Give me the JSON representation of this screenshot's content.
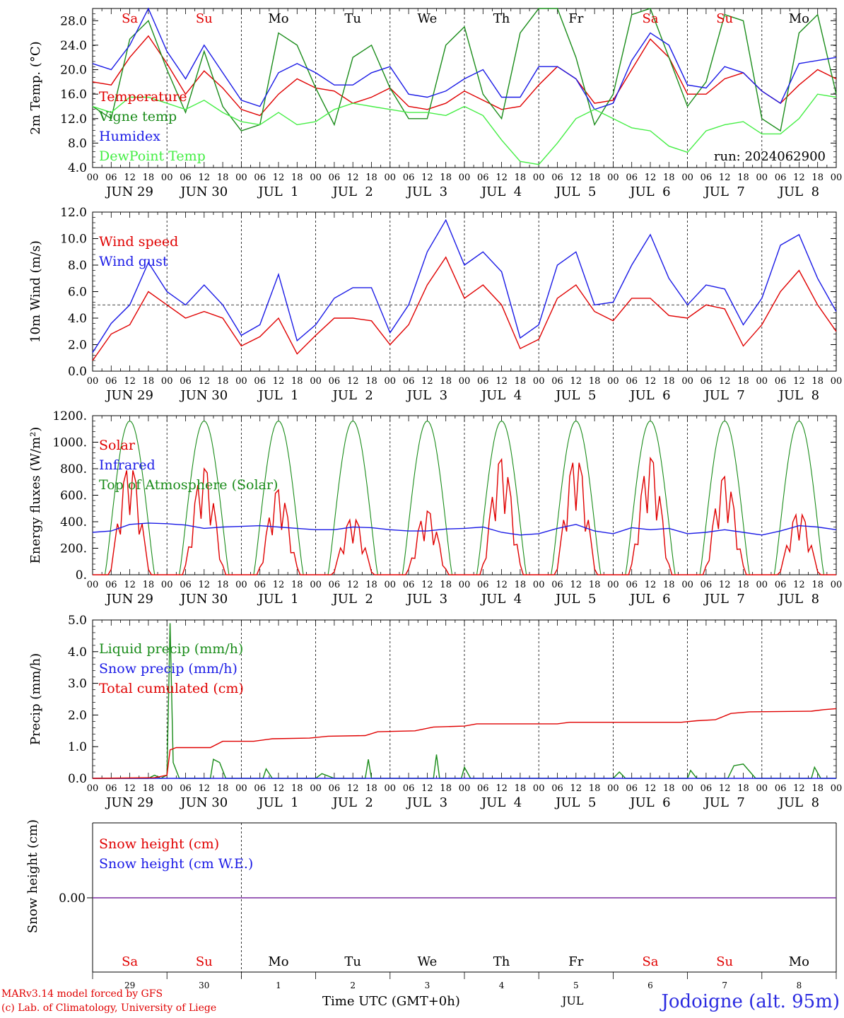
{
  "footer": {
    "model_line": "MARv3.14 model forced by GFS",
    "credit_line": "(c) Lab. of Climatology, University of Liege",
    "x_title": "Time UTC (GMT+0h)",
    "month": "JUL",
    "station": "Jodoigne (alt. 95m)"
  },
  "run_label": "run: 2024062900",
  "colors": {
    "red": "#e00000",
    "green": "#1a8c1a",
    "blue": "#1a1ae6",
    "lightgreen": "#44ee44",
    "purple": "#7a2aa0",
    "grid": "#000000"
  },
  "hour_ticks": [
    "00",
    "06",
    "12",
    "18"
  ],
  "chart_data": [
    {
      "type": "line",
      "ylabel": "2m Temp. (°C)",
      "ylim": [
        4,
        30
      ],
      "yticks": [
        "4.0",
        "8.0",
        "12.0",
        "16.0",
        "20.0",
        "24.0",
        "28.0"
      ],
      "day_labels": [
        "JUN 29",
        "JUN 30",
        "JUL  1",
        "JUL  2",
        "JUL  3",
        "JUL  4",
        "JUL  5",
        "JUL  6",
        "JUL  7",
        "JUL  8"
      ],
      "weekdays": [
        {
          "d": "Sa",
          "c": "red"
        },
        {
          "d": "Su",
          "c": "red"
        },
        {
          "d": "Mo",
          "c": "black"
        },
        {
          "d": "Tu",
          "c": "black"
        },
        {
          "d": "We",
          "c": "black"
        },
        {
          "d": "Th",
          "c": "black"
        },
        {
          "d": "Fr",
          "c": "black"
        },
        {
          "d": "Sa",
          "c": "red"
        },
        {
          "d": "Su",
          "c": "red"
        },
        {
          "d": "Mo",
          "c": "black"
        }
      ],
      "x_hours": [
        0,
        6,
        12,
        18,
        24,
        30,
        36,
        42,
        48,
        54,
        60,
        66,
        72,
        78,
        84,
        90,
        96,
        102,
        108,
        114,
        120,
        126,
        132,
        138,
        144,
        150,
        156,
        162,
        168,
        174,
        180,
        186,
        192,
        198,
        204,
        210,
        216,
        222,
        228,
        234,
        240
      ],
      "series": [
        {
          "name": "Temperature",
          "color": "red",
          "values": [
            18,
            17.5,
            22,
            25.5,
            21,
            16,
            19.8,
            17,
            13.5,
            12.5,
            16,
            18.5,
            17,
            16.5,
            14.5,
            15.5,
            17,
            14,
            13.5,
            14.5,
            16.5,
            15,
            13.5,
            14,
            17.5,
            20.5,
            18.5,
            14.5,
            15,
            20,
            25,
            22,
            16,
            16,
            18.5,
            19.5,
            16.5,
            14.5,
            17.5,
            20,
            18.5
          ]
        },
        {
          "name": "Vigne temp",
          "color": "green",
          "values": [
            14,
            12,
            25,
            28,
            20,
            13,
            23,
            14,
            10,
            11,
            26,
            24,
            17,
            11,
            22,
            24,
            17,
            12,
            12,
            24,
            27,
            16,
            12,
            26,
            30,
            30,
            22,
            11,
            16,
            29,
            30,
            22,
            14,
            18,
            29,
            28,
            12,
            10,
            26,
            29,
            16
          ]
        },
        {
          "name": "Humidex",
          "color": "blue",
          "values": [
            21,
            20,
            24,
            30,
            23,
            18.5,
            24,
            19.5,
            15,
            14,
            19.5,
            21,
            19.5,
            17.5,
            17.5,
            19.5,
            20.5,
            16,
            15.5,
            16.5,
            18.5,
            20,
            15.5,
            15.5,
            20.5,
            20.5,
            18.5,
            13.5,
            14.5,
            21.5,
            26,
            24,
            17.5,
            17,
            20.5,
            19.5,
            16.5,
            14.5,
            21,
            21.5,
            22
          ]
        },
        {
          "name": "DewPoint Temp",
          "color": "lightgreen",
          "values": [
            14,
            13,
            15.5,
            15.5,
            14.5,
            13.5,
            15,
            13,
            11.5,
            11,
            13,
            11,
            11.5,
            13.5,
            14.5,
            14,
            13.5,
            13,
            13,
            12.5,
            14,
            12.5,
            8.5,
            5,
            4.5,
            8,
            12,
            13.5,
            12,
            10.5,
            10,
            7.5,
            6.5,
            10,
            11,
            11.5,
            9.5,
            9.5,
            12,
            16,
            15.5
          ]
        }
      ]
    },
    {
      "type": "line",
      "ylabel": "10m Wind (m/s)",
      "ylim": [
        0,
        12
      ],
      "yticks": [
        "0.0",
        "2.0",
        "4.0",
        "6.0",
        "8.0",
        "10.0",
        "12.0"
      ],
      "ref_line": 5,
      "day_labels": [
        "JUN 29",
        "JUN 30",
        "JUL  1",
        "JUL  2",
        "JUL  3",
        "JUL  4",
        "JUL  5",
        "JUL  6",
        "JUL  7",
        "JUL  8"
      ],
      "x_hours": [
        0,
        6,
        12,
        18,
        24,
        30,
        36,
        42,
        48,
        54,
        60,
        66,
        72,
        78,
        84,
        90,
        96,
        102,
        108,
        114,
        120,
        126,
        132,
        138,
        144,
        150,
        156,
        162,
        168,
        174,
        180,
        186,
        192,
        198,
        204,
        210,
        216,
        222,
        228,
        234,
        240
      ],
      "series": [
        {
          "name": "Wind speed",
          "color": "red",
          "values": [
            0.8,
            2.8,
            3.5,
            6,
            5,
            4,
            4.5,
            4,
            1.9,
            2.6,
            4,
            1.3,
            2.7,
            4,
            4,
            3.8,
            2,
            3.5,
            6.5,
            8.6,
            5.5,
            6.5,
            5,
            1.7,
            2.4,
            5.5,
            6.5,
            4.5,
            3.8,
            5.5,
            5.5,
            4.2,
            4,
            5,
            4.7,
            1.9,
            3.5,
            6,
            7.6,
            5,
            3
          ]
        },
        {
          "name": "Wind gust",
          "color": "blue",
          "values": [
            1.4,
            3.6,
            5,
            8.2,
            6,
            5,
            6.5,
            5,
            2.7,
            3.5,
            7.3,
            2.3,
            3.5,
            5.5,
            6.3,
            6.3,
            2.9,
            5,
            9,
            11.4,
            8,
            9,
            7.5,
            2.5,
            3.5,
            8,
            9,
            5,
            5.2,
            8,
            10.3,
            7,
            5,
            6.5,
            6.2,
            3.5,
            5.5,
            9.5,
            10.3,
            7,
            4.5
          ]
        }
      ]
    },
    {
      "type": "line",
      "ylabel": "Energy fluxes (W/m²)",
      "ylim": [
        0,
        1200
      ],
      "yticks": [
        "0.",
        "200.",
        "400.",
        "600.",
        "800.",
        "1000.",
        "1200."
      ],
      "day_labels": [
        "JUN 29",
        "JUN 30",
        "JUL  1",
        "JUL  2",
        "JUL  3",
        "JUL  4",
        "JUL  5",
        "JUL  6",
        "JUL  7",
        "JUL  8"
      ],
      "series": [
        {
          "name": "Solar",
          "color": "red",
          "day_peaks": [
            820,
            800,
            640,
            430,
            480,
            870,
            880,
            880,
            740,
            470
          ]
        },
        {
          "name": "Infrared",
          "color": "blue",
          "values": [
            320,
            330,
            380,
            390,
            385,
            375,
            350,
            360,
            365,
            370,
            360,
            350,
            340,
            340,
            360,
            355,
            340,
            330,
            330,
            345,
            350,
            360,
            320,
            300,
            310,
            350,
            380,
            330,
            310,
            355,
            340,
            350,
            310,
            320,
            340,
            320,
            300,
            330,
            370,
            360,
            340
          ]
        },
        {
          "name": "Top of Atmosphere (Solar)",
          "color": "green",
          "peak": 1160
        }
      ]
    },
    {
      "type": "line",
      "ylabel": "Precip (mm/h)",
      "ylim": [
        0,
        5
      ],
      "yticks": [
        "0.0",
        "1.0",
        "2.0",
        "3.0",
        "4.0",
        "5.0"
      ],
      "day_labels": [
        "JUN 29",
        "JUN 30",
        "JUL  1",
        "JUL  2",
        "JUL  3",
        "JUL  4",
        "JUL  5",
        "JUL  6",
        "JUL  7",
        "JUL  8"
      ],
      "series": [
        {
          "name": "Liquid precip (mm/h)",
          "color": "green",
          "points": [
            [
              0,
              0
            ],
            [
              18,
              0
            ],
            [
              20,
              0.1
            ],
            [
              22,
              0
            ],
            [
              24,
              0.1
            ],
            [
              25,
              4.9
            ],
            [
              26,
              0.5
            ],
            [
              28,
              0
            ],
            [
              38,
              0
            ],
            [
              39,
              0.6
            ],
            [
              41,
              0.5
            ],
            [
              43,
              0
            ],
            [
              55,
              0
            ],
            [
              56,
              0.3
            ],
            [
              58,
              0
            ],
            [
              72,
              0
            ],
            [
              74,
              0.15
            ],
            [
              78,
              0
            ],
            [
              88,
              0
            ],
            [
              89,
              0.6
            ],
            [
              90,
              0
            ],
            [
              110,
              0
            ],
            [
              111,
              0.75
            ],
            [
              112,
              0
            ],
            [
              119,
              0
            ],
            [
              120,
              0.35
            ],
            [
              122,
              0
            ],
            [
              168,
              0
            ],
            [
              170,
              0.2
            ],
            [
              172,
              0
            ],
            [
              192,
              0
            ],
            [
              193,
              0.25
            ],
            [
              195,
              0
            ],
            [
              205,
              0
            ],
            [
              207,
              0.4
            ],
            [
              210,
              0.45
            ],
            [
              214,
              0
            ],
            [
              232,
              0
            ],
            [
              233,
              0.35
            ],
            [
              235,
              0
            ],
            [
              240,
              0
            ]
          ]
        },
        {
          "name": "Snow precip (mm/h)",
          "color": "blue",
          "points": [
            [
              0,
              0
            ],
            [
              240,
              0
            ]
          ]
        },
        {
          "name": "Total cumulated (cm)",
          "color": "red",
          "points": [
            [
              0,
              0
            ],
            [
              20,
              0.02
            ],
            [
              24,
              0.1
            ],
            [
              25,
              0.9
            ],
            [
              27,
              0.97
            ],
            [
              38,
              0.97
            ],
            [
              42,
              1.17
            ],
            [
              52,
              1.17
            ],
            [
              58,
              1.25
            ],
            [
              70,
              1.27
            ],
            [
              76,
              1.33
            ],
            [
              88,
              1.35
            ],
            [
              92,
              1.47
            ],
            [
              104,
              1.5
            ],
            [
              110,
              1.62
            ],
            [
              120,
              1.65
            ],
            [
              124,
              1.72
            ],
            [
              150,
              1.72
            ],
            [
              154,
              1.77
            ],
            [
              190,
              1.77
            ],
            [
              195,
              1.82
            ],
            [
              201,
              1.85
            ],
            [
              206,
              2.05
            ],
            [
              212,
              2.1
            ],
            [
              232,
              2.12
            ],
            [
              236,
              2.17
            ],
            [
              240,
              2.2
            ]
          ]
        }
      ]
    },
    {
      "type": "line",
      "ylabel": "Snow height (cm)",
      "yticks": [
        "0.00"
      ],
      "series": [
        {
          "name": "Snow height (cm)",
          "color": "red",
          "values": [
            0,
            0
          ]
        },
        {
          "name": "Snow height (cm W.E.)",
          "color": "blue",
          "values": [
            0,
            0
          ]
        }
      ],
      "weekdays": [
        {
          "d": "Sa",
          "c": "red"
        },
        {
          "d": "Su",
          "c": "red"
        },
        {
          "d": "Mo",
          "c": "black"
        },
        {
          "d": "Tu",
          "c": "black"
        },
        {
          "d": "We",
          "c": "black"
        },
        {
          "d": "Th",
          "c": "black"
        },
        {
          "d": "Fr",
          "c": "black"
        },
        {
          "d": "Sa",
          "c": "red"
        },
        {
          "d": "Su",
          "c": "red"
        },
        {
          "d": "Mo",
          "c": "black"
        }
      ],
      "day_numbers": [
        "29",
        "30",
        "1",
        "2",
        "3",
        "4",
        "5",
        "6",
        "7",
        "8"
      ]
    }
  ]
}
